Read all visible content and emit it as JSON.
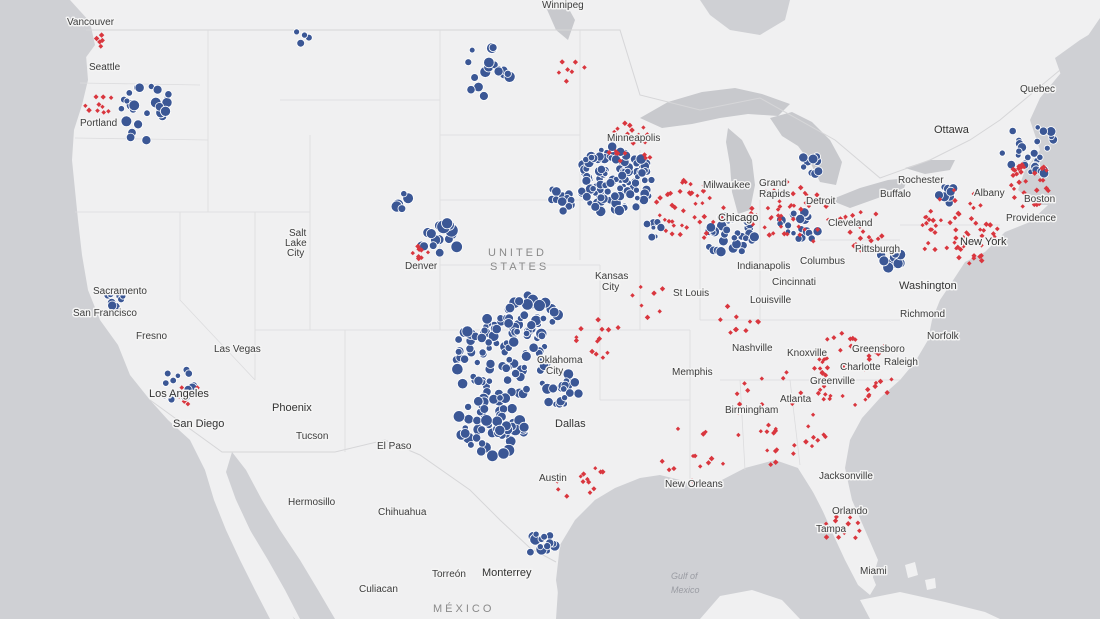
{
  "map": {
    "background_color": "#cfd0d4",
    "land_color": "#f0f0f1",
    "border_color": "#d6d6d8",
    "lake_color": "#c8c9cd",
    "oil_color": "#3b5795",
    "gas_color": "#d9363e"
  },
  "countries": {
    "us_line1": "UNITED",
    "us_line2": "STATES",
    "mexico": "MÉXICO"
  },
  "water_labels": {
    "gulf_line1": "Gulf of",
    "gulf_line2": "Mexico"
  },
  "cities": {
    "vancouver": "Vancouver",
    "winnipeg": "Winnipeg",
    "quebec": "Quebec",
    "ottawa": "Ottawa",
    "seattle": "Seattle",
    "portland": "Portland",
    "minneapolis": "Minneapolis",
    "milwaukee": "Milwaukee",
    "grand_rapids_1": "Grand",
    "grand_rapids_2": "Rapids",
    "detroit": "Detroit",
    "rochester": "Rochester",
    "buffalo": "Buffalo",
    "albany": "Albany",
    "boston": "Boston",
    "providence": "Providence",
    "chicago": "Chicago",
    "cleveland": "Cleveland",
    "pittsburgh": "Pittsburgh",
    "new_york": "New York",
    "salt_1": "Salt",
    "salt_2": "Lake",
    "salt_3": "City",
    "denver": "Denver",
    "kansas_1": "Kansas",
    "kansas_2": "City",
    "indianapolis": "Indianapolis",
    "columbus": "Columbus",
    "cincinnati": "Cincinnati",
    "washington": "Washington",
    "sacramento": "Sacramento",
    "san_francisco": "San Francisco",
    "st_louis": "St Louis",
    "louisville": "Louisville",
    "fresno": "Fresno",
    "richmond": "Richmond",
    "las_vegas": "Las Vegas",
    "oklahoma_1": "Oklahoma",
    "oklahoma_2": "City",
    "nashville": "Nashville",
    "knoxville": "Knoxville",
    "greensboro": "Greensboro",
    "norfolk": "Norfolk",
    "charlotte": "Charlotte",
    "raleigh": "Raleigh",
    "memphis": "Memphis",
    "greenville": "Greenville",
    "los_angeles": "Los Angeles",
    "phoenix": "Phoenix",
    "atlanta": "Atlanta",
    "birmingham": "Birmingham",
    "san_diego": "San Diego",
    "dallas": "Dallas",
    "tucson": "Tucson",
    "el_paso": "El Paso",
    "austin": "Austin",
    "jacksonville": "Jacksonville",
    "new_orleans": "New Orleans",
    "hermosillo": "Hermosillo",
    "chihuahua": "Chihuahua",
    "orlando": "Orlando",
    "tampa": "Tampa",
    "monterrey": "Monterrey",
    "miami": "Miami",
    "culiacan": "Culiacan",
    "torreon": "Torreón"
  }
}
